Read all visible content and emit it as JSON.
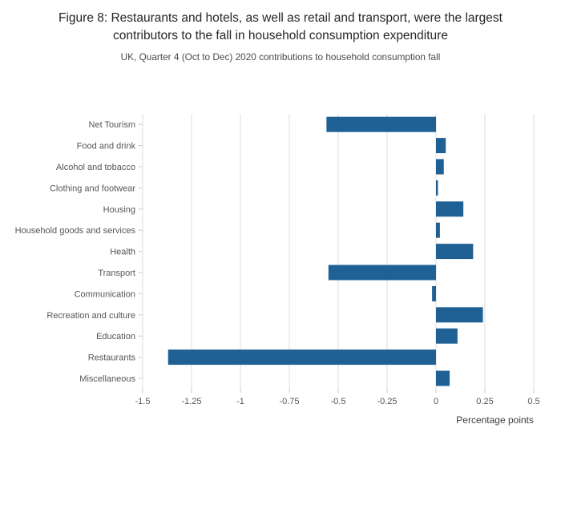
{
  "figure": {
    "title": "Figure 8: Restaurants and hotels, as well as retail and transport, were the largest contributors to the fall in household consumption expenditure",
    "subtitle": "UK, Quarter 4 (Oct to Dec) 2020 contributions to household consumption fall"
  },
  "chart_data": {
    "type": "bar",
    "orientation": "horizontal",
    "title": "Figure 8: Restaurants and hotels, as well as retail and transport, were the largest contributors to the fall in household consumption expenditure",
    "subtitle": "UK, Quarter 4 (Oct to Dec) 2020 contributions to household consumption fall",
    "categories": [
      "Net Tourism",
      "Food and drink",
      "Alcohol and tobacco",
      "Clothing and footwear",
      "Housing",
      "Household goods and services",
      "Health",
      "Transport",
      "Communication",
      "Recreation and culture",
      "Education",
      "Restaurants",
      "Miscellaneous"
    ],
    "values": [
      -0.56,
      0.05,
      0.04,
      0.01,
      0.14,
      0.02,
      0.19,
      -0.55,
      -0.02,
      0.24,
      0.11,
      -1.37,
      0.07
    ],
    "xlabel": "Percentage points",
    "ylabel": "",
    "xlim": [
      -1.5,
      0.5
    ],
    "xticks": [
      -1.5,
      -1.25,
      -1,
      -0.75,
      -0.5,
      -0.25,
      0,
      0.25,
      0.5
    ],
    "xtick_labels": [
      "-1.5",
      "-1.25",
      "-1",
      "-0.75",
      "-0.5",
      "-0.25",
      "0",
      "0.25",
      "0.5"
    ],
    "bar_color": "#1f6095",
    "grid_color": "#dcdcdc",
    "tick_color": "#c8c8c8",
    "grid": true,
    "legend": false
  }
}
